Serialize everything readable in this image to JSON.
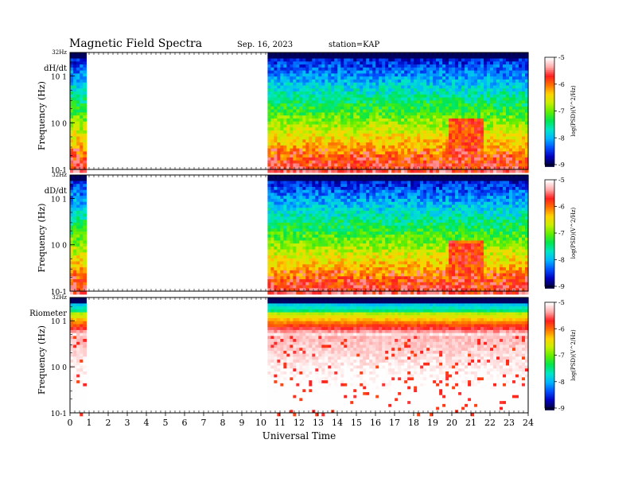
{
  "header": {
    "title": "Magnetic  Field  Spectra",
    "date": "Sep. 16, 2023",
    "station": "station=KAP"
  },
  "colors": {
    "cmap": [
      "#000040",
      "#0000c0",
      "#0050ff",
      "#00b4ff",
      "#00e6c8",
      "#00e650",
      "#60ee00",
      "#c8ee00",
      "#ffd200",
      "#ff7000",
      "#ff1e1e",
      "#ffaaaa",
      "#ffffff"
    ]
  },
  "chart_data": [
    {
      "type": "heatmap",
      "panel_label": "dH/dt",
      "ylabel": "Frequency  (Hz)",
      "y_top_label": "32Hz",
      "y_ticks": [
        {
          "value": 0.1,
          "label": "10-1"
        },
        {
          "value": 1,
          "label": "10 0"
        },
        {
          "value": 10,
          "label": "10 1"
        }
      ],
      "y_scale": "log",
      "ylim": [
        0.1,
        32
      ],
      "data_segments_hours": [
        [
          0,
          0.85
        ],
        [
          10.35,
          24
        ]
      ],
      "colorbar": {
        "label": "log(PSD)(V^2/Hz)",
        "ticks": [
          -5,
          -6,
          -7,
          -8,
          -9
        ],
        "range": [
          -9,
          -5
        ]
      }
    },
    {
      "type": "heatmap",
      "panel_label": "dD/dt",
      "ylabel": "Frequency  (Hz)",
      "y_top_label": "32Hz",
      "y_ticks": [
        {
          "value": 0.1,
          "label": "10-1"
        },
        {
          "value": 1,
          "label": "10 0"
        },
        {
          "value": 10,
          "label": "10 1"
        }
      ],
      "y_scale": "log",
      "ylim": [
        0.1,
        32
      ],
      "data_segments_hours": [
        [
          0,
          0.85
        ],
        [
          10.35,
          24
        ]
      ],
      "colorbar": {
        "label": "log(PSD)(V^2/Hz)",
        "ticks": [
          -5,
          -6,
          -7,
          -8,
          -9
        ],
        "range": [
          -9,
          -5
        ]
      }
    },
    {
      "type": "heatmap",
      "panel_label": "Riometer",
      "ylabel": "Frequency  (Hz)",
      "y_top_label": "32Hz",
      "y_ticks": [
        {
          "value": 0.1,
          "label": "10-1"
        },
        {
          "value": 1,
          "label": "10 0"
        },
        {
          "value": 10,
          "label": "10 1"
        }
      ],
      "y_scale": "log",
      "ylim": [
        0.1,
        32
      ],
      "data_segments_hours": [
        [
          0,
          0.85
        ],
        [
          10.35,
          24
        ]
      ],
      "colorbar": {
        "label": "log(PSD)(V^2/Hz)",
        "ticks": [
          -5,
          -6,
          -7,
          -8,
          -9
        ],
        "range": [
          -9,
          -5
        ]
      }
    }
  ],
  "xaxis": {
    "label": "Universal  Time",
    "ticks": [
      0,
      1,
      2,
      3,
      4,
      5,
      6,
      7,
      8,
      9,
      10,
      11,
      12,
      13,
      14,
      15,
      16,
      17,
      18,
      19,
      20,
      21,
      22,
      23,
      24
    ],
    "tick_labels": [
      "0",
      "1",
      "2",
      "3",
      "4",
      "5",
      "6",
      "7",
      "8",
      "9",
      "10",
      "11",
      "12",
      "13",
      "14",
      "15",
      "16",
      "17",
      "18",
      "19",
      "20",
      "21",
      "22",
      "23",
      "24"
    ],
    "range": [
      0,
      24
    ]
  }
}
